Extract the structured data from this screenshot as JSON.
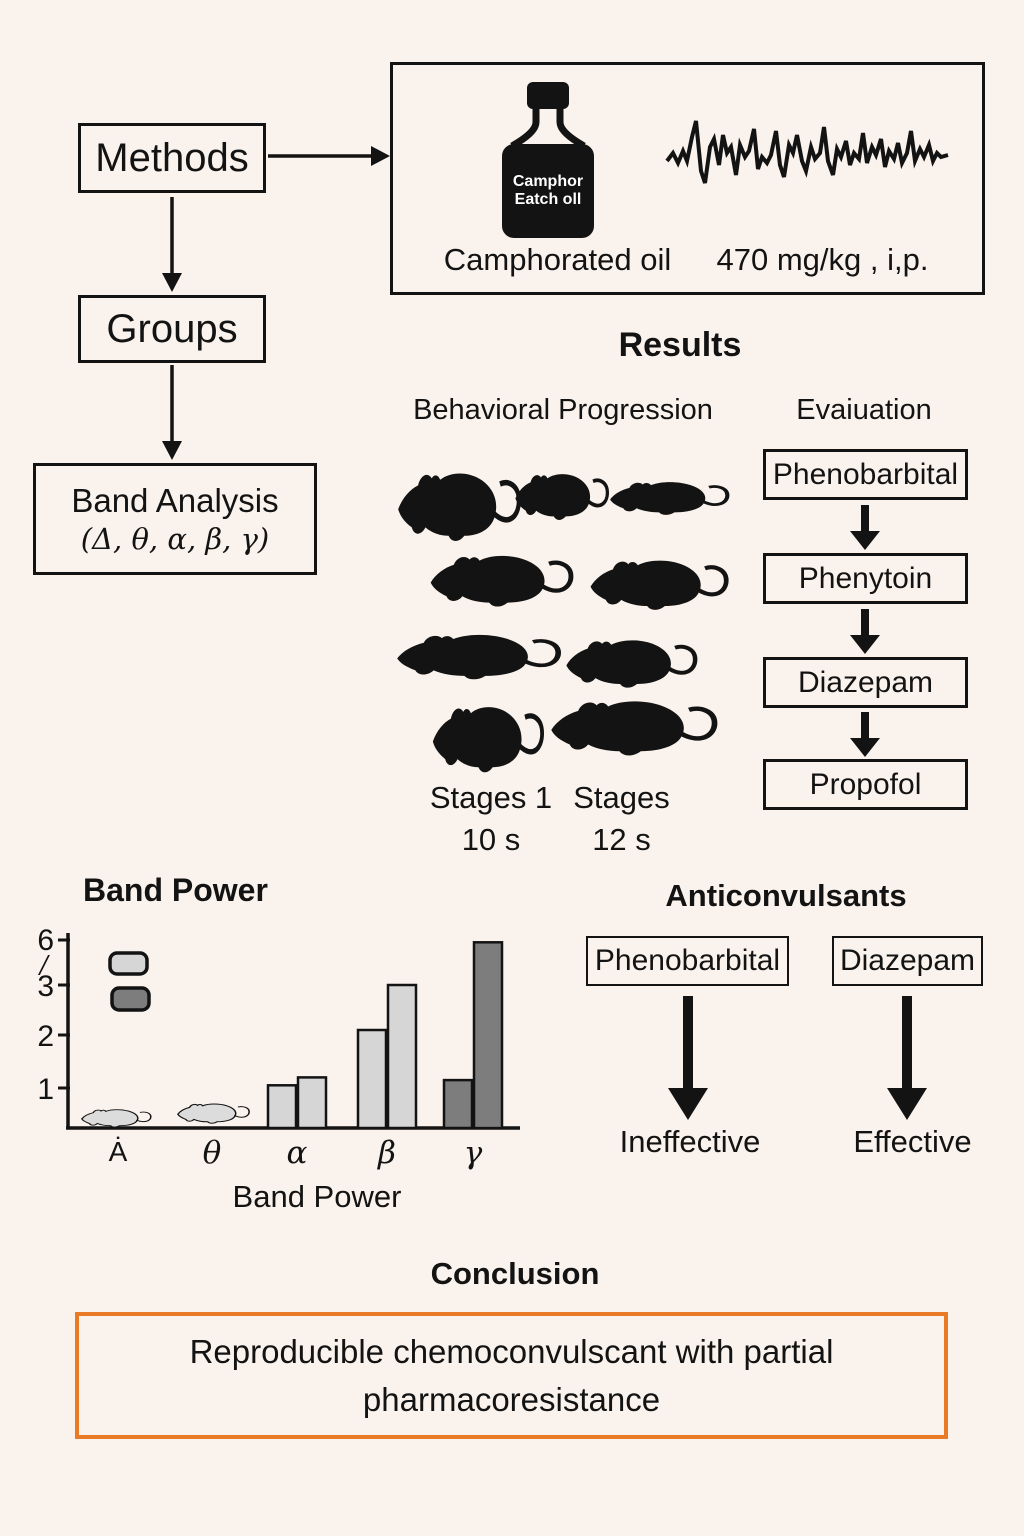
{
  "figure": {
    "background": "#FAF3ED",
    "ink": "#131313"
  },
  "methods_flow": {
    "methods_label": "Methods",
    "groups_label": "Groups",
    "band_analysis_title": "Band Analysis",
    "band_analysis_bands": "(Δ, θ, α, β, γ)"
  },
  "stimulus": {
    "bottle_label_line1": "Camphor",
    "bottle_label_line2": "Eatch oll",
    "caption": "Camphorated oil",
    "dose": "470 mg/kg , i,p."
  },
  "results": {
    "heading": "Results",
    "behavioral_heading": "Behavioral Progression",
    "evaluation_heading": "Evaiuation",
    "evaluation_chain": [
      "Phenobarbital",
      "Phenytoin",
      "Diazepam",
      "Propofol"
    ],
    "stages_left_line1": "Stages 1",
    "stages_left_line2": "10 s",
    "stages_right_line1": "Stages",
    "stages_right_line2": "12 s"
  },
  "band_power": {
    "title": "Band Power"
  },
  "chart_data": {
    "type": "bar",
    "title": "Band Power",
    "xlabel": "Band Power",
    "ylabel": "",
    "categories": [
      "Ȧ",
      "θ",
      "α",
      "β",
      "γ"
    ],
    "category_markers": [
      "rat-silhouette",
      "rat-silhouette",
      "bars",
      "bars",
      "bars"
    ],
    "series": [
      {
        "name": "bar-1",
        "values": [
          null,
          null,
          1.05,
          2.1,
          1.15
        ],
        "fills": [
          null,
          null,
          "#D6D6D6",
          "#D6D6D6",
          "#7D7D7D"
        ]
      },
      {
        "name": "bar-2",
        "values": [
          null,
          null,
          1.2,
          3.0,
          5.85
        ],
        "fills": [
          null,
          null,
          "#D6D6D6",
          "#D6D6D6",
          "#7D7D7D"
        ]
      }
    ],
    "ytick_labels": [
      "6",
      "/",
      "3",
      "2",
      "1"
    ],
    "ylim": [
      0,
      6
    ],
    "grid": false,
    "legend": {
      "position": "top-left",
      "entries": [
        {
          "name": "light-series",
          "color": "#D6D6D6"
        },
        {
          "name": "dark-series",
          "color": "#7D7D7D"
        }
      ]
    }
  },
  "anticonvulsants": {
    "heading": "Anticonvulsants",
    "left_drug": "Phenobarbital",
    "right_drug": "Diazepam",
    "left_outcome": "Ineffective",
    "right_outcome": "Effective"
  },
  "conclusion": {
    "heading": "Conclusion",
    "line1": "Reproducible chemoconvulscant with partial",
    "line2": "pharmacoresistance",
    "border_color": "#E87A28"
  }
}
